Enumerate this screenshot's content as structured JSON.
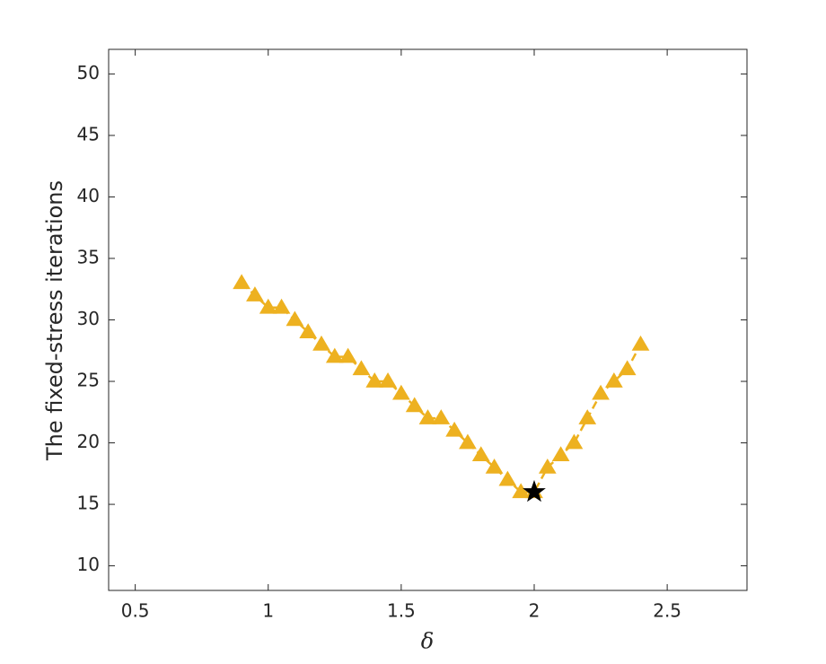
{
  "chart_data": {
    "type": "line",
    "xlabel": "δ",
    "ylabel": "The fixed-stress iterations",
    "x": [
      0.9,
      0.95,
      1.0,
      1.05,
      1.1,
      1.15,
      1.2,
      1.25,
      1.3,
      1.35,
      1.4,
      1.45,
      1.5,
      1.55,
      1.6,
      1.65,
      1.7,
      1.75,
      1.8,
      1.85,
      1.9,
      1.95,
      2.0,
      2.05,
      2.1,
      2.15,
      2.2,
      2.25,
      2.3,
      2.35,
      2.4
    ],
    "series": [
      {
        "color": "#EDB120",
        "marker": "triangle",
        "linestyle": "dashed",
        "values": [
          33,
          32,
          31,
          31,
          30,
          29,
          28,
          27,
          27,
          26,
          25,
          25,
          24,
          23,
          22,
          22,
          21,
          20,
          19,
          18,
          17,
          16,
          16,
          18,
          19,
          20,
          22,
          24,
          25,
          26,
          28
        ]
      }
    ],
    "highlight": {
      "x": 2.0,
      "y": 16,
      "marker": "star",
      "color": "#000000"
    },
    "xlim": [
      0.4,
      2.8
    ],
    "ylim": [
      8,
      52
    ],
    "xticks": [
      0.5,
      1,
      1.5,
      2,
      2.5
    ],
    "yticks": [
      10,
      15,
      20,
      25,
      30,
      35,
      40,
      45,
      50
    ],
    "grid": false
  }
}
